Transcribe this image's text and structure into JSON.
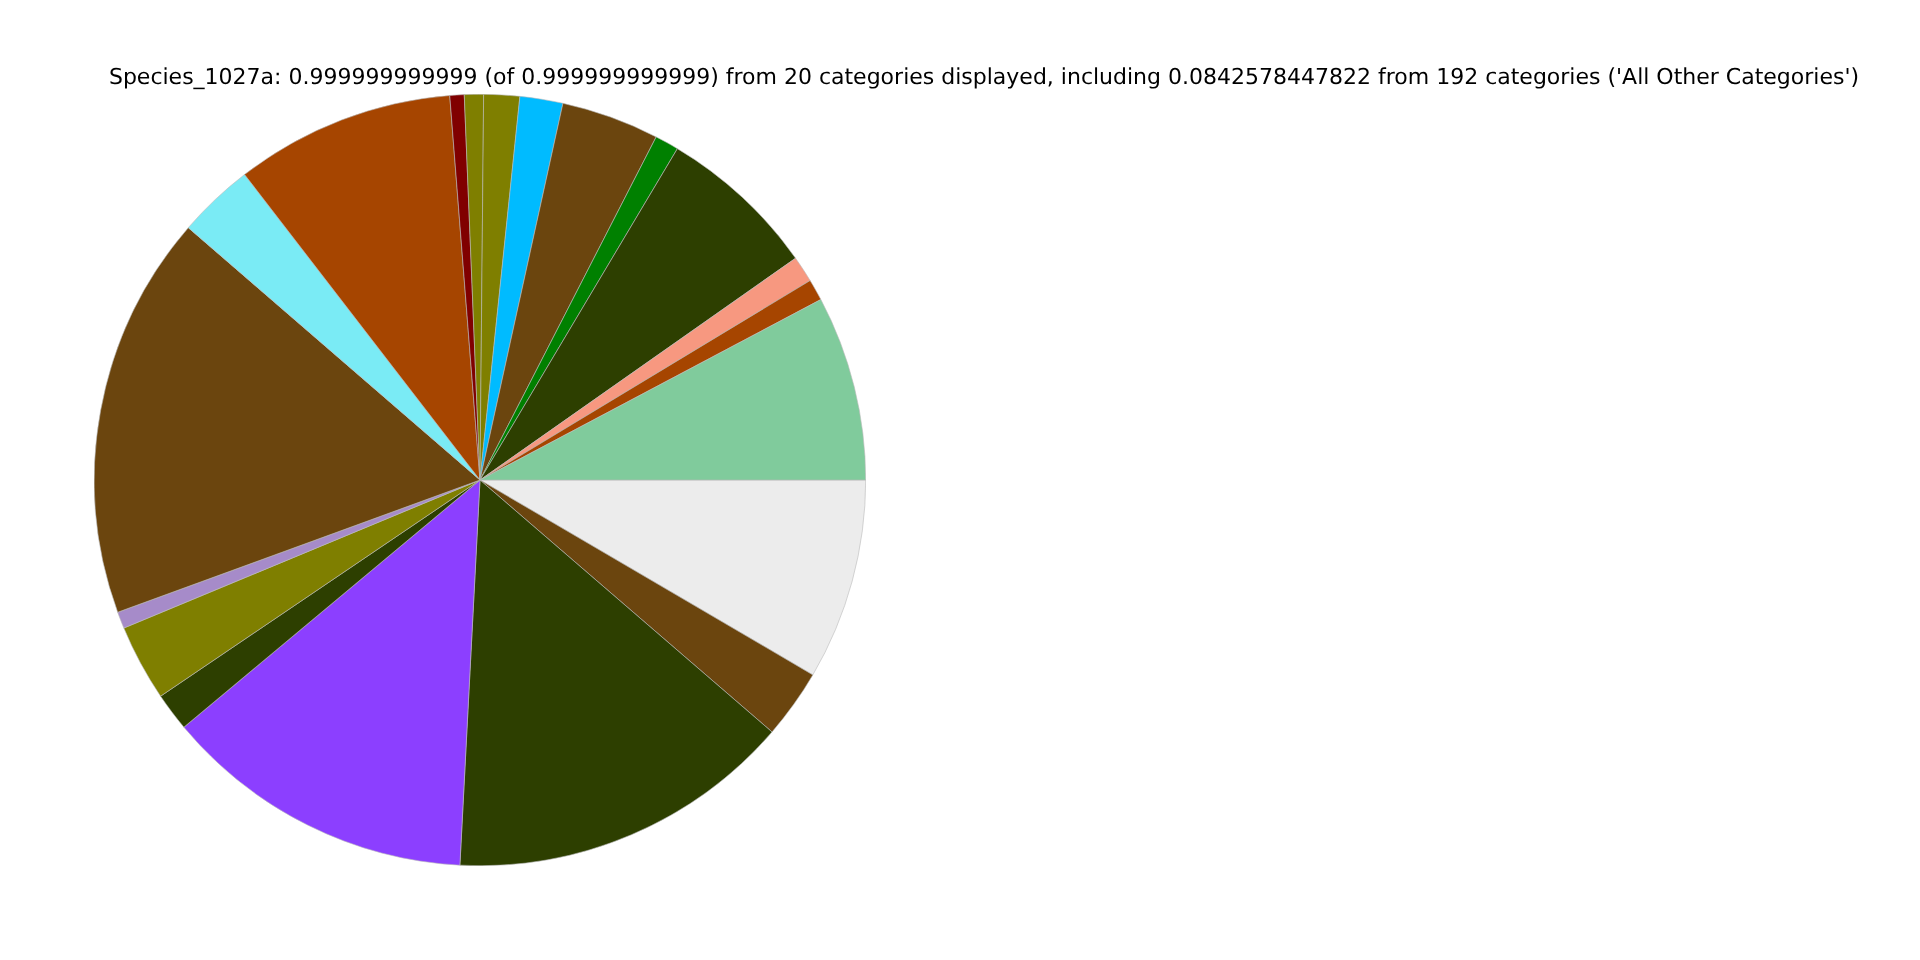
{
  "chart_data": {
    "type": "pie",
    "title": "Species_1027a: 0.999999999999 (of 0.999999999999) from 20 categories displayed, including 0.0842578447822 from 192 categories ('All Other Categories')",
    "categories": [
      null,
      null,
      null,
      null,
      null,
      null,
      null,
      null,
      null,
      null,
      null,
      null,
      null,
      null,
      null,
      null,
      null,
      null,
      null,
      null
    ],
    "values": [
      7.75,
      0.9,
      1.1,
      6.7,
      1.0,
      4.1,
      1.8,
      1.5,
      0.8,
      0.6,
      9.2,
      3.2,
      16.92,
      0.7,
      3.2,
      1.6,
      13.1,
      14.5,
      2.9,
      8.43
    ],
    "colors": [
      "#80cb9c",
      "#a64500",
      "#f79880",
      "#2d3f00",
      "#008000",
      "#6b450e",
      "#00bbff",
      "#7f7f00",
      "#7f7f00",
      "#800000",
      "#a64500",
      "#7aebf5",
      "#6b450e",
      "#a68bc9",
      "#7f7f00",
      "#2d3f00",
      "#8c3fff",
      "#2d3f00",
      "#6b450e",
      "#ececec"
    ],
    "legend": false
  }
}
